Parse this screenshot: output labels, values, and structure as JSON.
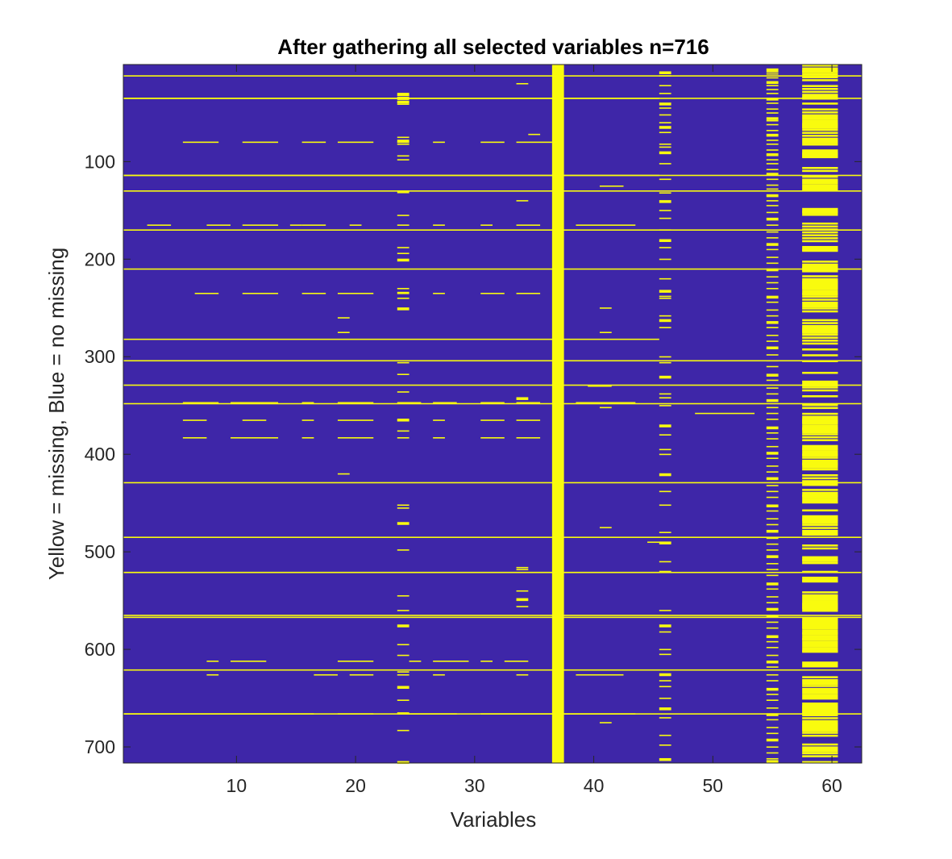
{
  "chart_data": {
    "type": "heatmap",
    "title": "After gathering all selected variables n=716",
    "xlabel": "Variables",
    "ylabel": "Yellow = missing, Blue = no missing",
    "n_rows": 716,
    "n_cols": 62,
    "xlim": [
      0.5,
      62.5
    ],
    "ylim": [
      0.5,
      716.5
    ],
    "y_reversed": true,
    "grid": false,
    "xticks": [
      10,
      20,
      30,
      40,
      50,
      60
    ],
    "xtick_labels": [
      "10",
      "20",
      "30",
      "40",
      "50",
      "60"
    ],
    "yticks": [
      100,
      200,
      300,
      400,
      500,
      600,
      700
    ],
    "ytick_labels": [
      "100",
      "200",
      "300",
      "400",
      "500",
      "600",
      "700"
    ],
    "colors": {
      "missing": "#f9fb0e",
      "not_missing": "#3e26a8",
      "axis": "#262626"
    },
    "full_missing_rows": [
      12,
      35,
      114,
      130,
      170,
      210,
      304,
      329,
      348,
      429,
      485,
      521,
      565,
      567,
      621,
      666
    ],
    "full_missing_columns": [
      37
    ],
    "partial_row_segments": [
      {
        "row": 35,
        "c0": 1,
        "c1": 45
      },
      {
        "row": 80,
        "c0": 6,
        "c1": 8
      },
      {
        "row": 80,
        "c0": 11,
        "c1": 13
      },
      {
        "row": 80,
        "c0": 16,
        "c1": 17
      },
      {
        "row": 80,
        "c0": 19,
        "c1": 21
      },
      {
        "row": 80,
        "c0": 24,
        "c1": 24
      },
      {
        "row": 80,
        "c0": 27,
        "c1": 27
      },
      {
        "row": 80,
        "c0": 31,
        "c1": 32
      },
      {
        "row": 80,
        "c0": 34,
        "c1": 36
      },
      {
        "row": 114,
        "c0": 1,
        "c1": 45
      },
      {
        "row": 165,
        "c0": 3,
        "c1": 4
      },
      {
        "row": 165,
        "c0": 8,
        "c1": 9
      },
      {
        "row": 165,
        "c0": 11,
        "c1": 13
      },
      {
        "row": 165,
        "c0": 15,
        "c1": 15
      },
      {
        "row": 165,
        "c0": 16,
        "c1": 17
      },
      {
        "row": 165,
        "c0": 20,
        "c1": 20
      },
      {
        "row": 165,
        "c0": 24,
        "c1": 24
      },
      {
        "row": 165,
        "c0": 27,
        "c1": 27
      },
      {
        "row": 165,
        "c0": 31,
        "c1": 31
      },
      {
        "row": 165,
        "c0": 34,
        "c1": 35
      },
      {
        "row": 165,
        "c0": 39,
        "c1": 43
      },
      {
        "row": 235,
        "c0": 7,
        "c1": 8
      },
      {
        "row": 235,
        "c0": 11,
        "c1": 13
      },
      {
        "row": 235,
        "c0": 16,
        "c1": 17
      },
      {
        "row": 235,
        "c0": 19,
        "c1": 21
      },
      {
        "row": 235,
        "c0": 24,
        "c1": 24
      },
      {
        "row": 235,
        "c0": 27,
        "c1": 27
      },
      {
        "row": 235,
        "c0": 31,
        "c1": 32
      },
      {
        "row": 235,
        "c0": 34,
        "c1": 35
      },
      {
        "row": 282,
        "c0": 1,
        "c1": 45
      },
      {
        "row": 347,
        "c0": 6,
        "c1": 8
      },
      {
        "row": 347,
        "c0": 10,
        "c1": 13
      },
      {
        "row": 347,
        "c0": 16,
        "c1": 16
      },
      {
        "row": 347,
        "c0": 19,
        "c1": 21
      },
      {
        "row": 347,
        "c0": 24,
        "c1": 25
      },
      {
        "row": 347,
        "c0": 27,
        "c1": 28
      },
      {
        "row": 347,
        "c0": 31,
        "c1": 32
      },
      {
        "row": 347,
        "c0": 34,
        "c1": 35
      },
      {
        "row": 347,
        "c0": 39,
        "c1": 43
      },
      {
        "row": 365,
        "c0": 6,
        "c1": 7
      },
      {
        "row": 365,
        "c0": 11,
        "c1": 12
      },
      {
        "row": 365,
        "c0": 16,
        "c1": 16
      },
      {
        "row": 365,
        "c0": 19,
        "c1": 21
      },
      {
        "row": 365,
        "c0": 24,
        "c1": 24
      },
      {
        "row": 365,
        "c0": 27,
        "c1": 27
      },
      {
        "row": 365,
        "c0": 31,
        "c1": 32
      },
      {
        "row": 365,
        "c0": 34,
        "c1": 35
      },
      {
        "row": 383,
        "c0": 6,
        "c1": 7
      },
      {
        "row": 383,
        "c0": 10,
        "c1": 13
      },
      {
        "row": 383,
        "c0": 16,
        "c1": 16
      },
      {
        "row": 383,
        "c0": 19,
        "c1": 21
      },
      {
        "row": 383,
        "c0": 24,
        "c1": 24
      },
      {
        "row": 383,
        "c0": 27,
        "c1": 27
      },
      {
        "row": 383,
        "c0": 31,
        "c1": 32
      },
      {
        "row": 383,
        "c0": 34,
        "c1": 35
      },
      {
        "row": 521,
        "c0": 1,
        "c1": 45
      },
      {
        "row": 612,
        "c0": 8,
        "c1": 8
      },
      {
        "row": 612,
        "c0": 10,
        "c1": 12
      },
      {
        "row": 612,
        "c0": 19,
        "c1": 21
      },
      {
        "row": 612,
        "c0": 25,
        "c1": 25
      },
      {
        "row": 612,
        "c0": 27,
        "c1": 29
      },
      {
        "row": 612,
        "c0": 31,
        "c1": 31
      },
      {
        "row": 612,
        "c0": 33,
        "c1": 34
      },
      {
        "row": 626,
        "c0": 8,
        "c1": 8
      },
      {
        "row": 626,
        "c0": 17,
        "c1": 18
      },
      {
        "row": 626,
        "c0": 20,
        "c1": 21
      },
      {
        "row": 626,
        "c0": 24,
        "c1": 24
      },
      {
        "row": 626,
        "c0": 27,
        "c1": 27
      },
      {
        "row": 626,
        "c0": 34,
        "c1": 34
      },
      {
        "row": 626,
        "c0": 39,
        "c1": 42
      },
      {
        "row": 666,
        "c0": 1,
        "c1": 16
      },
      {
        "row": 666,
        "c0": 19,
        "c1": 21
      },
      {
        "row": 666,
        "c0": 24,
        "c1": 28
      },
      {
        "row": 666,
        "c0": 31,
        "c1": 36
      },
      {
        "row": 666,
        "c0": 38,
        "c1": 43
      },
      {
        "row": 358,
        "c0": 49,
        "c1": 53
      },
      {
        "row": 490,
        "c0": 45,
        "c1": 46
      },
      {
        "row": 20,
        "c0": 34,
        "c1": 34
      },
      {
        "row": 72,
        "c0": 35,
        "c1": 35
      },
      {
        "row": 140,
        "c0": 34,
        "c1": 34
      },
      {
        "row": 125,
        "c0": 41,
        "c1": 42
      },
      {
        "row": 260,
        "c0": 19,
        "c1": 19
      },
      {
        "row": 275,
        "c0": 19,
        "c1": 19
      },
      {
        "row": 420,
        "c0": 19,
        "c1": 19
      },
      {
        "row": 250,
        "c0": 41,
        "c1": 41
      },
      {
        "row": 275,
        "c0": 41,
        "c1": 41
      },
      {
        "row": 330,
        "c0": 40,
        "c1": 41
      },
      {
        "row": 352,
        "c0": 41,
        "c1": 41
      },
      {
        "row": 475,
        "c0": 41,
        "c1": 41
      },
      {
        "row": 675,
        "c0": 41,
        "c1": 41
      }
    ],
    "column_patterns": [
      {
        "col": 24,
        "rows": [
          30,
          32,
          34,
          36,
          38,
          39,
          41,
          75,
          78,
          82,
          94,
          98,
          130,
          155,
          188,
          194,
          200,
          230,
          234,
          240,
          250,
          306,
          318,
          336,
          364,
          376,
          452,
          455,
          470,
          498,
          545,
          560,
          575,
          595,
          606,
          623,
          638,
          652,
          665,
          683,
          715
        ]
      },
      {
        "col": 34,
        "rows": [
          342,
          516,
          518,
          540,
          548,
          556
        ]
      },
      {
        "col": 46,
        "rows": [
          8,
          12,
          22,
          30,
          40,
          45,
          52,
          60,
          64,
          70,
          82,
          85,
          90,
          102,
          118,
          132,
          140,
          150,
          158,
          170,
          180,
          188,
          200,
          220,
          232,
          238,
          240,
          258,
          262,
          270,
          300,
          306,
          320,
          338,
          342,
          350,
          370,
          380,
          395,
          400,
          420,
          438,
          452,
          480,
          490,
          510,
          520,
          560,
          575,
          582,
          600,
          605,
          625,
          632,
          638,
          650,
          660,
          670,
          688,
          698,
          712
        ]
      },
      {
        "col": 55,
        "rows": [
          5,
          8,
          10,
          14,
          18,
          22,
          26,
          30,
          35,
          40,
          46,
          50,
          55,
          58,
          62,
          68,
          72,
          78,
          82,
          88,
          92,
          98,
          102,
          108,
          112,
          118,
          124,
          128,
          134,
          140,
          145,
          152,
          158,
          165,
          172,
          178,
          184,
          190,
          198,
          204,
          210,
          218,
          224,
          230,
          238,
          244,
          252,
          258,
          264,
          270,
          278,
          284,
          290,
          298,
          304,
          310,
          318,
          324,
          332,
          338,
          344,
          352,
          358,
          364,
          372,
          378,
          384,
          392,
          398,
          404,
          412,
          418,
          424,
          432,
          438,
          444,
          452,
          458,
          466,
          472,
          478,
          486,
          492,
          498,
          504,
          512,
          518,
          524,
          532,
          538,
          546,
          552,
          558,
          566,
          572,
          578,
          586,
          592,
          598,
          606,
          612,
          618,
          626,
          632,
          640,
          646,
          652,
          660,
          666,
          672,
          680,
          686,
          692,
          700,
          706,
          712,
          714
        ]
      }
    ],
    "dense_column_bands": [
      {
        "c0": 58,
        "c1": 60,
        "rows_step": 3,
        "fill_ratio": 0.6
      }
    ]
  }
}
